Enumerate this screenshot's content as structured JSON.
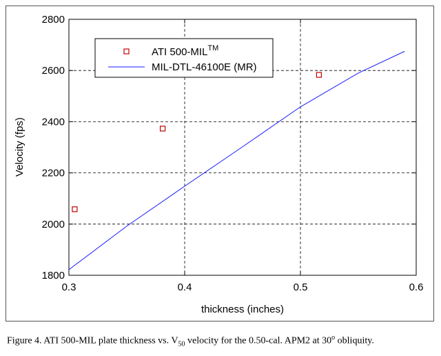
{
  "chart_data": {
    "type": "scatter",
    "xlabel": "thickness (inches)",
    "ylabel": "Velocity (fps)",
    "xlim": [
      0.3,
      0.6
    ],
    "ylim": [
      1800,
      2800
    ],
    "x_ticks": [
      "0.3",
      "0.4",
      "0.5",
      "0.6"
    ],
    "y_ticks": [
      "1800",
      "2000",
      "2200",
      "2400",
      "2600",
      "2800"
    ],
    "grid": "dashed, interior",
    "legend_position": "top-left",
    "series": [
      {
        "name": "ATI 500-MIL",
        "name_superscript": "TM",
        "kind": "markers",
        "marker": "square",
        "color": "#c00000",
        "x": [
          0.305,
          0.381,
          0.516
        ],
        "y": [
          2058,
          2373,
          2583
        ]
      },
      {
        "name": "MIL-DTL-46100E (MR)",
        "kind": "line",
        "color": "#1a1aff",
        "x": [
          0.3,
          0.35,
          0.4,
          0.45,
          0.5,
          0.55,
          0.59
        ],
        "y": [
          1822,
          1992,
          2148,
          2302,
          2458,
          2590,
          2675
        ]
      }
    ]
  },
  "caption": {
    "prefix": "Figure 4.  ATI 500-MIL plate thickness vs. V",
    "subscript": "50",
    "middle": " velocity for the 0.50-cal. APM2 at 30",
    "superscript": "o",
    "suffix": " obliquity."
  }
}
